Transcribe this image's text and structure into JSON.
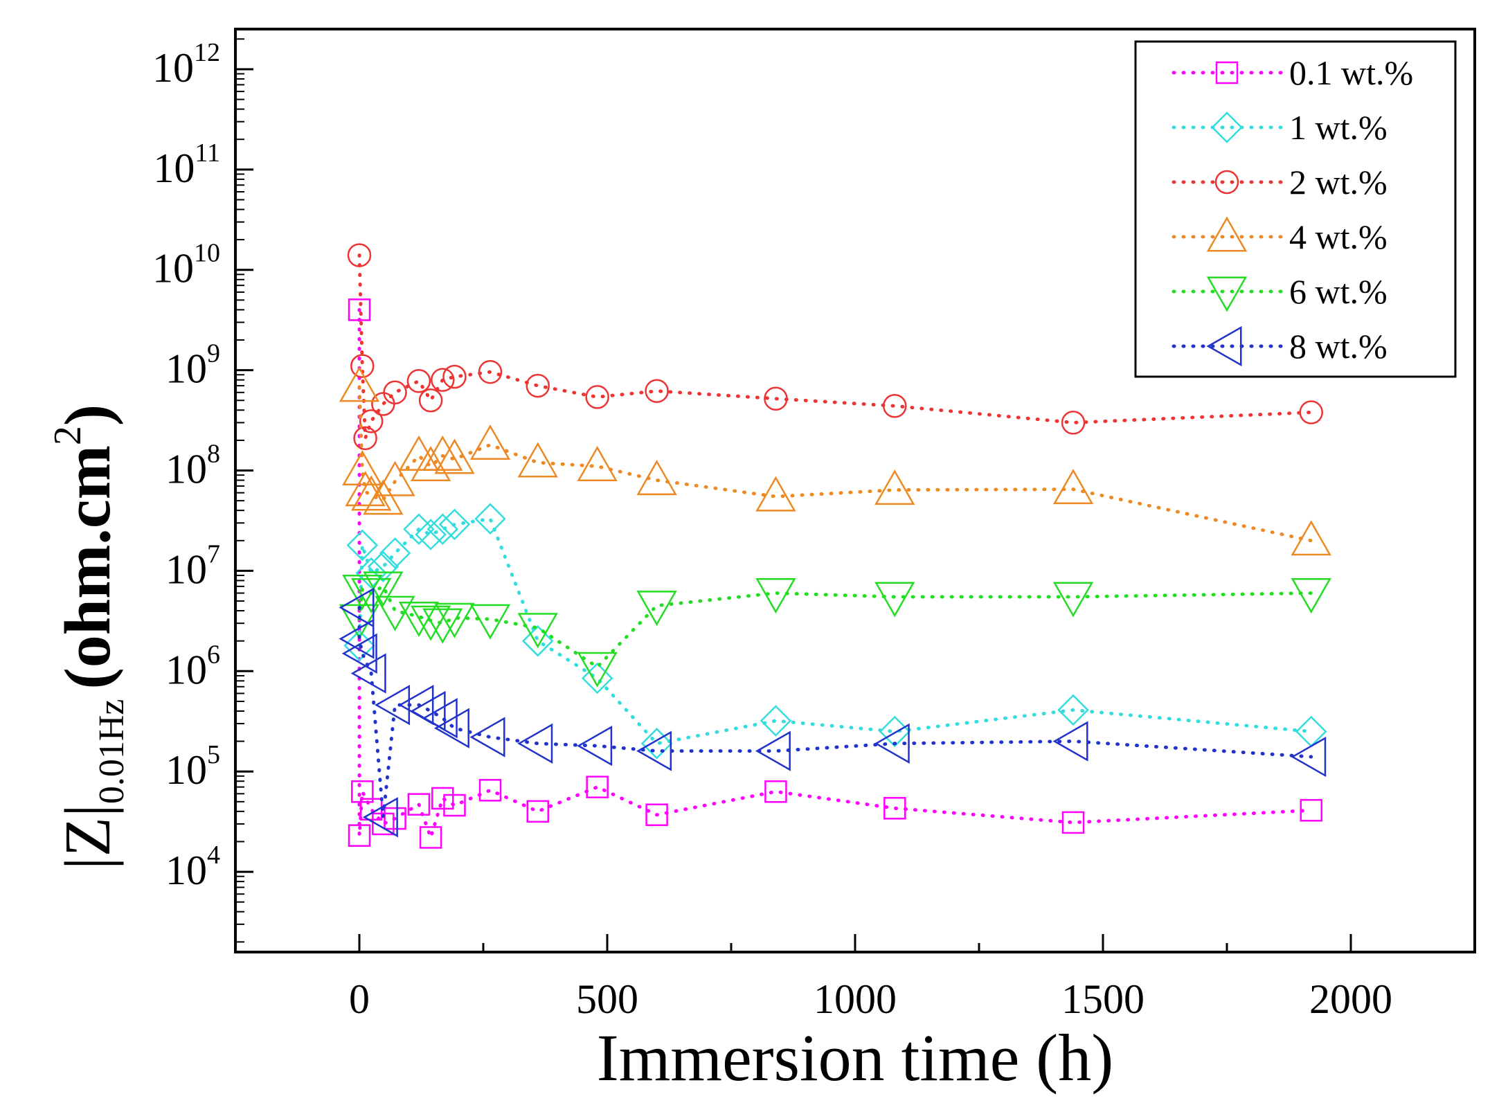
{
  "chart_data": {
    "type": "scatter",
    "title": "",
    "xlabel": "Immersion time (h)",
    "ylabel": {
      "base": "|Z|",
      "subscript": "0.01Hz",
      "unit_open": "(ohm.cm",
      "unit_power": "2",
      "unit_close": ")"
    },
    "xlim": [
      -250,
      2250
    ],
    "ylim_log10": [
      3.2,
      12.4
    ],
    "y_scale": "log",
    "x_ticks": [
      "0",
      "500",
      "1000",
      "1500",
      "2000"
    ],
    "x_tick_values": [
      0,
      500,
      1000,
      1500,
      2000
    ],
    "y_ticks": [
      {
        "base": "10",
        "exp": "4",
        "value": 4
      },
      {
        "base": "10",
        "exp": "5",
        "value": 5
      },
      {
        "base": "10",
        "exp": "6",
        "value": 6
      },
      {
        "base": "10",
        "exp": "7",
        "value": 7
      },
      {
        "base": "10",
        "exp": "8",
        "value": 8
      },
      {
        "base": "10",
        "exp": "9",
        "value": 9
      },
      {
        "base": "10",
        "exp": "10",
        "value": 10
      },
      {
        "base": "10",
        "exp": "11",
        "value": 11
      },
      {
        "base": "10",
        "exp": "12",
        "value": 12
      }
    ],
    "legend_position": "top-right",
    "grid": false,
    "series": [
      {
        "name": "0.1 wt.%",
        "marker": "square",
        "color": "#ff00ff",
        "x": [
          0,
          0,
          6,
          24,
          48,
          72,
          120,
          144,
          168,
          192,
          264,
          360,
          480,
          600,
          840,
          1080,
          1440,
          1920
        ],
        "y": [
          4000000000.0,
          23000.0,
          63000.0,
          42000.0,
          30000.0,
          34000.0,
          47000.0,
          22000.0,
          54000.0,
          46000.0,
          65000.0,
          40000.0,
          70000.0,
          37000.0,
          63000.0,
          43000.0,
          31000.0,
          41000.0
        ]
      },
      {
        "name": "1 wt.%",
        "marker": "diamond",
        "color": "#33dddd",
        "x": [
          0,
          6,
          24,
          48,
          72,
          120,
          144,
          168,
          192,
          264,
          360,
          480,
          600,
          840,
          1080,
          1440,
          1920
        ],
        "y": [
          1800000.0,
          18000000.0,
          9500000.0,
          11000000.0,
          15000000.0,
          26000000.0,
          23000000.0,
          26000000.0,
          29000000.0,
          33000000.0,
          2000000.0,
          850000.0,
          190000.0,
          320000.0,
          250000.0,
          410000.0,
          250000.0
        ]
      },
      {
        "name": "2 wt.%",
        "marker": "circle",
        "color": "#ee3333",
        "x": [
          0,
          6,
          12,
          24,
          48,
          72,
          120,
          144,
          168,
          192,
          264,
          360,
          480,
          600,
          840,
          1080,
          1440,
          1920
        ],
        "y": [
          14000000000.0,
          1100000000.0,
          210000000.0,
          310000000.0,
          460000000.0,
          600000000.0,
          780000000.0,
          500000000.0,
          800000000.0,
          860000000.0,
          960000000.0,
          700000000.0,
          540000000.0,
          620000000.0,
          520000000.0,
          440000000.0,
          300000000.0,
          380000000.0
        ]
      },
      {
        "name": "4 wt.%",
        "marker": "triangle-up",
        "color": "#ee8822",
        "x": [
          0,
          6,
          12,
          24,
          48,
          72,
          120,
          144,
          168,
          192,
          264,
          360,
          480,
          600,
          840,
          1080,
          1440,
          1920
        ],
        "y": [
          680000000.0,
          100000000.0,
          62000000.0,
          56000000.0,
          51000000.0,
          78000000.0,
          140000000.0,
          110000000.0,
          140000000.0,
          130000000.0,
          180000000.0,
          120000000.0,
          110000000.0,
          80000000.0,
          55000000.0,
          64000000.0,
          65000000.0,
          20000000.0
        ]
      },
      {
        "name": "6 wt.%",
        "marker": "triangle-down",
        "color": "#22dd22",
        "x": [
          0,
          6,
          24,
          48,
          72,
          120,
          144,
          168,
          192,
          264,
          360,
          480,
          600,
          840,
          1080,
          1440,
          1920
        ],
        "y": [
          3300000.0,
          6500000.0,
          6000000.0,
          7000000.0,
          4000000.0,
          3500000.0,
          3200000.0,
          3000000.0,
          3400000.0,
          3300000.0,
          2700000.0,
          1100000.0,
          4500000.0,
          6000000.0,
          5500000.0,
          5500000.0,
          6000000.0
        ]
      },
      {
        "name": "8 wt.%",
        "marker": "triangle-left",
        "color": "#2233cc",
        "x": [
          0,
          0,
          6,
          24,
          48,
          72,
          120,
          144,
          168,
          192,
          264,
          360,
          480,
          600,
          840,
          1080,
          1440,
          1920
        ],
        "y": [
          4300000.0,
          2100000.0,
          1500000.0,
          950000.0,
          35000.0,
          460000.0,
          460000.0,
          400000.0,
          340000.0,
          270000.0,
          220000.0,
          190000.0,
          180000.0,
          160000.0,
          160000.0,
          190000.0,
          200000.0,
          140000.0
        ]
      }
    ]
  }
}
